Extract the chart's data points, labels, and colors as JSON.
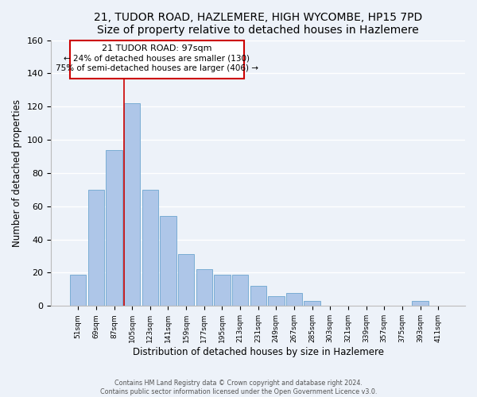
{
  "title": "21, TUDOR ROAD, HAZLEMERE, HIGH WYCOMBE, HP15 7PD",
  "subtitle": "Size of property relative to detached houses in Hazlemere",
  "xlabel": "Distribution of detached houses by size in Hazlemere",
  "ylabel": "Number of detached properties",
  "bar_labels": [
    "51sqm",
    "69sqm",
    "87sqm",
    "105sqm",
    "123sqm",
    "141sqm",
    "159sqm",
    "177sqm",
    "195sqm",
    "213sqm",
    "231sqm",
    "249sqm",
    "267sqm",
    "285sqm",
    "303sqm",
    "321sqm",
    "339sqm",
    "357sqm",
    "375sqm",
    "393sqm",
    "411sqm"
  ],
  "bar_values": [
    19,
    70,
    94,
    122,
    70,
    54,
    31,
    22,
    19,
    19,
    12,
    6,
    8,
    3,
    0,
    0,
    0,
    0,
    0,
    3,
    0
  ],
  "bar_color": "#aec6e8",
  "bar_edge_color": "#7aadd4",
  "annotation_text_line1": "21 TUDOR ROAD: 97sqm",
  "annotation_text_line2": "← 24% of detached houses are smaller (130)",
  "annotation_text_line3": "75% of semi-detached houses are larger (406) →",
  "annotation_box_color": "#ffffff",
  "annotation_box_edge": "#cc0000",
  "vline_color": "#cc0000",
  "ylim": [
    0,
    160
  ],
  "yticks": [
    0,
    20,
    40,
    60,
    80,
    100,
    120,
    140,
    160
  ],
  "footer_line1": "Contains HM Land Registry data © Crown copyright and database right 2024.",
  "footer_line2": "Contains public sector information licensed under the Open Government Licence v3.0.",
  "bg_color": "#edf2f9",
  "grid_color": "#ffffff",
  "title_fontsize": 10,
  "subtitle_fontsize": 9
}
